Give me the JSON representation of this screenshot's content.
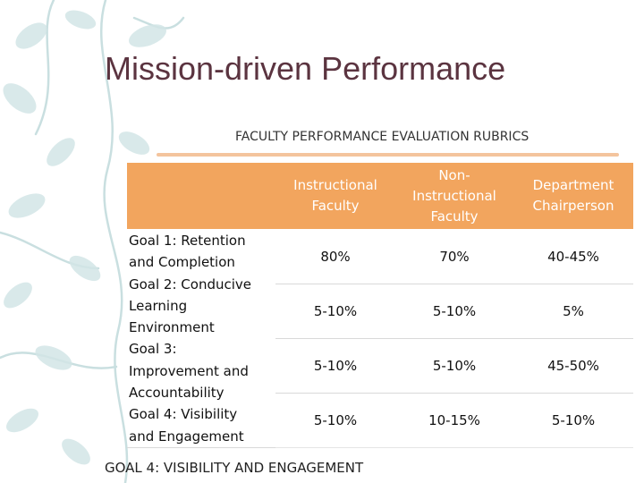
{
  "slide": {
    "title": "Mission-driven Performance",
    "subtitle": "FACULTY PERFORMANCE EVALUATION RUBRICS",
    "footer": "GOAL 4: VISIBILITY AND ENGAGEMENT"
  },
  "table": {
    "headers": [
      "",
      "Instructional Faculty",
      "Non-Instructional Faculty",
      "Department Chairperson"
    ],
    "goal_lines": [
      "Goal 1: Retention",
      "and Completion",
      "Goal 2: Conducive",
      "Learning",
      "Environment",
      "Goal 3:",
      "Improvement and",
      "Accountability",
      "Goal 4: Visibility",
      "and Engagement"
    ],
    "rows": [
      [
        "80%",
        "70%",
        "40-45%"
      ],
      [
        "5-10%",
        "5-10%",
        "5%"
      ],
      [
        "5-10%",
        "5-10%",
        "45-50%"
      ],
      [
        "5-10%",
        "10-15%",
        "5-10%"
      ]
    ]
  },
  "colors": {
    "title": "#5b3440",
    "header_fill": "#f2a55e",
    "rule": "#f4c49d",
    "leaf_decoration": "#c9dfe0"
  }
}
